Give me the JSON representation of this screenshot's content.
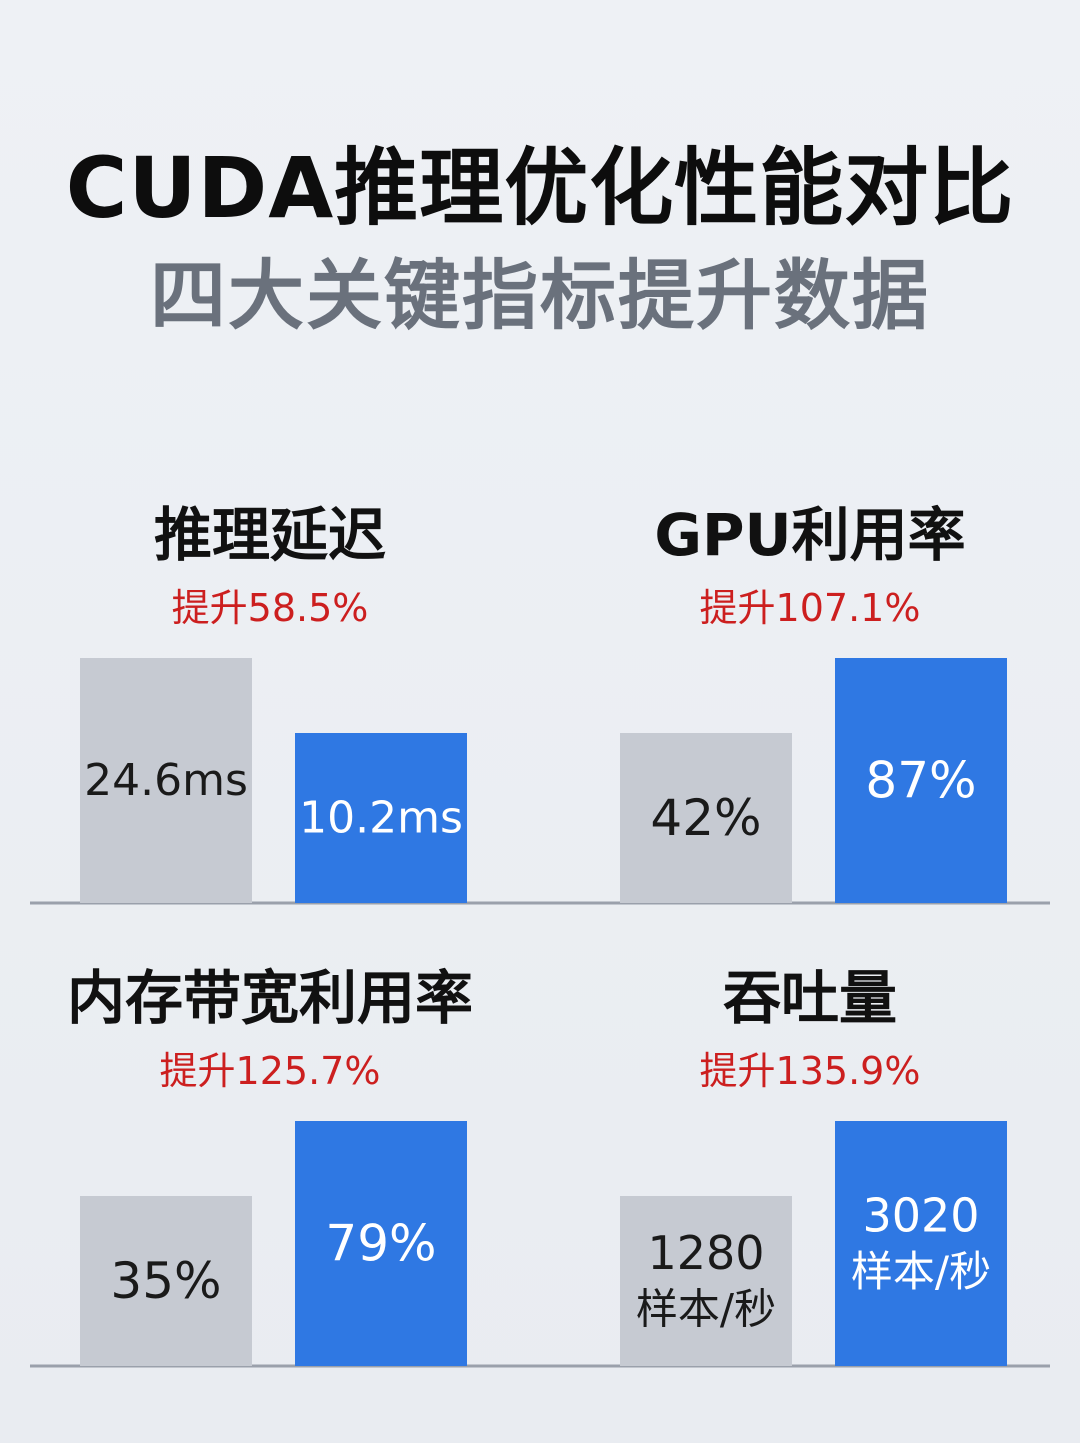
{
  "header": {
    "title": "CUDA推理优化性能对比",
    "subtitle": "四大关键指标提升数据"
  },
  "colors": {
    "baseline_bar": "#c6cad2",
    "optimized_bar": "#2f78e3",
    "improvement_text": "#cc1f1f",
    "axis_line": "#9aa0ab"
  },
  "chart_data": [
    {
      "type": "bar",
      "title": "推理延迟",
      "subtitle": "提升58.5%",
      "values": [
        24.6,
        10.2
      ],
      "value_labels": [
        [
          "24.6ms"
        ],
        [
          "10.2ms"
        ]
      ]
    },
    {
      "type": "bar",
      "title": "GPU利用率",
      "subtitle": "提升107.1%",
      "values": [
        42,
        87
      ],
      "value_labels": [
        [
          "42%"
        ],
        [
          "87%"
        ]
      ]
    },
    {
      "type": "bar",
      "title": "内存带宽利用率",
      "subtitle": "提升125.7%",
      "values": [
        35,
        79
      ],
      "value_labels": [
        [
          "35%"
        ],
        [
          "79%"
        ]
      ]
    },
    {
      "type": "bar",
      "title": "吞吐量",
      "subtitle": "提升135.9%",
      "values": [
        1280,
        3020
      ],
      "value_labels": [
        [
          "1280",
          "样本/秒"
        ],
        [
          "3020",
          "样本/秒"
        ]
      ]
    }
  ]
}
